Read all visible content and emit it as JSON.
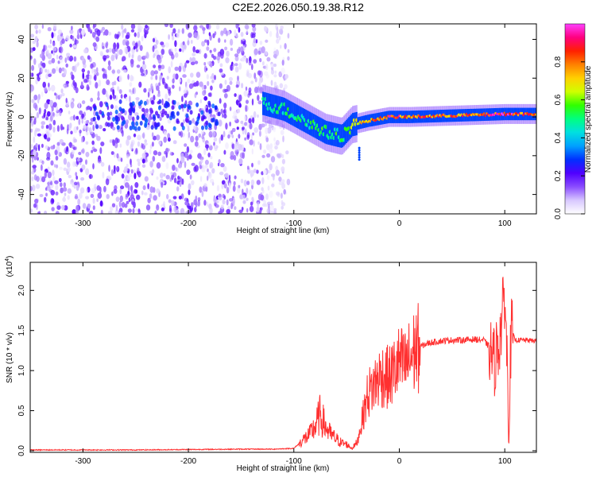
{
  "title": "C2E2.2026.050.19.38.R12",
  "chart_data": [
    {
      "type": "heatmap",
      "xlabel": "Height of straight line (km)",
      "ylabel": "Frequency (Hz)",
      "xlim": [
        -350,
        130
      ],
      "ylim": [
        -50,
        48
      ],
      "x_ticks": [
        -300,
        -200,
        -100,
        0,
        100
      ],
      "x_tick_labels": [
        "-300",
        "-200",
        "-100",
        "0",
        "100"
      ],
      "y_ticks": [
        -40,
        -20,
        0,
        20,
        40
      ],
      "y_tick_labels": [
        "-40",
        "-20",
        "0",
        "20",
        "40"
      ],
      "colorbar": {
        "label": "Normalized spectral amplitude",
        "range": [
          0,
          1
        ],
        "ticks": [
          0.0,
          0.2,
          0.4,
          0.6,
          0.8
        ],
        "tick_labels": [
          "0.0",
          "0.2",
          "0.4",
          "0.6",
          "0.8"
        ],
        "colormap": [
          "#ffffff",
          "#d8c8ff",
          "#8a4cff",
          "#5000ff",
          "#0030ff",
          "#00a0ff",
          "#00e0e0",
          "#00ff80",
          "#30ff00",
          "#d0ff00",
          "#ffd000",
          "#ff8000",
          "#ff2000",
          "#ff0080",
          "#ff40ff"
        ]
      },
      "noise_region": {
        "x": [
          -350,
          -115
        ],
        "freq_range": [
          -50,
          48
        ],
        "typical_amplitude": 0.15
      },
      "signal_ridge": [
        {
          "x": -130,
          "freq": 7,
          "amp": 0.45
        },
        {
          "x": -110,
          "freq": 4,
          "amp": 0.5
        },
        {
          "x": -90,
          "freq": -2,
          "amp": 0.5
        },
        {
          "x": -70,
          "freq": -8,
          "amp": 0.55
        },
        {
          "x": -55,
          "freq": -10,
          "amp": 0.5
        },
        {
          "x": -45,
          "freq": -4,
          "amp": 0.6
        },
        {
          "x": -30,
          "freq": -2,
          "amp": 0.75
        },
        {
          "x": -10,
          "freq": 0,
          "amp": 0.85
        },
        {
          "x": 10,
          "freq": 0,
          "amp": 0.8
        },
        {
          "x": 40,
          "freq": 0.5,
          "amp": 0.78
        },
        {
          "x": 70,
          "freq": 1,
          "amp": 0.8
        },
        {
          "x": 100,
          "freq": 1.5,
          "amp": 0.9
        },
        {
          "x": 130,
          "freq": 1.5,
          "amp": 0.8
        }
      ]
    },
    {
      "type": "line",
      "xlabel": "Height of straight line (km)",
      "ylabel": "SNR (10 * v/v)",
      "y_scale_label": "(x10",
      "y_scale_exponent": "4",
      "y_scale_close": ")",
      "xlim": [
        -350,
        130
      ],
      "ylim": [
        -0.02,
        2.35
      ],
      "x_ticks": [
        -300,
        -200,
        -100,
        0,
        100
      ],
      "x_tick_labels": [
        "-300",
        "-200",
        "-100",
        "0",
        "100"
      ],
      "y_ticks": [
        0.0,
        0.5,
        1.0,
        1.5,
        2.0
      ],
      "y_tick_labels": [
        "0.0",
        "0.5",
        "1.0",
        "1.5",
        "2.0"
      ],
      "series": [
        {
          "color": "#ff3030",
          "x": [
            -350,
            -300,
            -250,
            -200,
            -150,
            -120,
            -100,
            -90,
            -85,
            -80,
            -75,
            -70,
            -65,
            -60,
            -55,
            -50,
            -45,
            -40,
            -35,
            -30,
            -25,
            -20,
            -15,
            -10,
            -5,
            0,
            5,
            10,
            15,
            20,
            25,
            30,
            40,
            50,
            60,
            70,
            80,
            85,
            90,
            95,
            98,
            100,
            102,
            104,
            106,
            110,
            120,
            130
          ],
          "values": [
            0.01,
            0.01,
            0.01,
            0.015,
            0.02,
            0.02,
            0.03,
            0.15,
            0.2,
            0.3,
            0.45,
            0.3,
            0.2,
            0.15,
            0.1,
            0.08,
            0.03,
            0.1,
            0.4,
            0.7,
            0.8,
            0.9,
            0.95,
            0.9,
            1.0,
            1.1,
            1.05,
            1.15,
            1.25,
            1.3,
            1.33,
            1.35,
            1.37,
            1.38,
            1.38,
            1.39,
            1.38,
            1.3,
            1.1,
            1.4,
            1.7,
            2.0,
            1.2,
            0.4,
            1.5,
            1.38,
            1.38,
            1.37
          ]
        }
      ]
    }
  ]
}
